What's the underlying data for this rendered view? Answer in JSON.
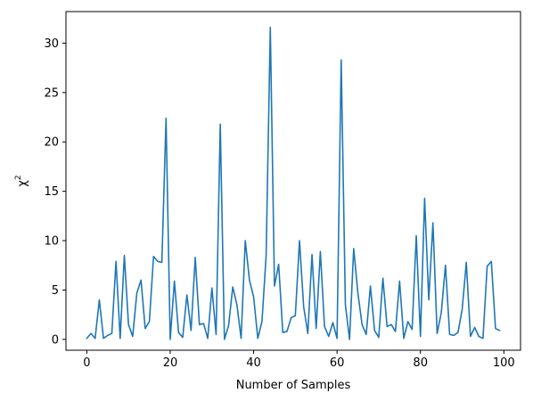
{
  "chart_data": {
    "type": "line",
    "title": "",
    "xlabel": "Number of Samples",
    "ylabel_base": "χ",
    "ylabel_sup": "2",
    "xlim": [
      -5,
      104
    ],
    "ylim": [
      -1.1,
      33.2
    ],
    "grid": false,
    "x_ticks": [
      0,
      20,
      40,
      60,
      80,
      100
    ],
    "y_ticks": [
      0,
      5,
      10,
      15,
      20,
      25,
      30
    ],
    "series": [
      {
        "color": "#1f77b4",
        "x": [
          0,
          1,
          2,
          3,
          4,
          5,
          6,
          7,
          8,
          9,
          10,
          11,
          12,
          13,
          14,
          15,
          16,
          17,
          18,
          19,
          20,
          21,
          22,
          23,
          24,
          25,
          26,
          27,
          28,
          29,
          30,
          31,
          32,
          33,
          34,
          35,
          36,
          37,
          38,
          39,
          40,
          41,
          42,
          43,
          44,
          45,
          46,
          47,
          48,
          49,
          50,
          51,
          52,
          53,
          54,
          55,
          56,
          57,
          58,
          59,
          60,
          61,
          62,
          63,
          64,
          65,
          66,
          67,
          68,
          69,
          70,
          71,
          72,
          73,
          74,
          75,
          76,
          77,
          78,
          79,
          80,
          81,
          82,
          83,
          84,
          85,
          86,
          87,
          88,
          89,
          90,
          91,
          92,
          93,
          94,
          95,
          96,
          97,
          98,
          99
        ],
        "values": [
          0.1,
          0.6,
          0.1,
          4.0,
          0.1,
          0.4,
          0.6,
          7.9,
          0.1,
          8.5,
          1.5,
          0.3,
          4.7,
          6.0,
          1.1,
          1.8,
          8.4,
          7.9,
          7.8,
          22.4,
          0.0,
          5.9,
          0.7,
          0.2,
          4.5,
          0.9,
          8.3,
          1.5,
          1.6,
          0.1,
          5.2,
          0.5,
          21.8,
          0.0,
          1.4,
          5.3,
          3.5,
          0.1,
          10.0,
          6.0,
          4.3,
          0.1,
          1.8,
          8.5,
          31.6,
          5.4,
          7.6,
          0.7,
          0.8,
          2.2,
          2.4,
          10.0,
          3.3,
          0.6,
          8.6,
          1.1,
          8.9,
          1.3,
          0.3,
          1.7,
          0.1,
          28.3,
          3.5,
          0.0,
          9.2,
          4.7,
          1.5,
          0.5,
          5.4,
          0.9,
          0.2,
          6.2,
          1.3,
          1.5,
          0.8,
          5.9,
          0.1,
          1.8,
          1.0,
          10.5,
          0.3,
          14.3,
          4.0,
          11.8,
          0.6,
          2.7,
          7.5,
          0.5,
          0.4,
          0.7,
          3.0,
          7.8,
          0.3,
          1.2,
          0.3,
          0.1,
          7.4,
          7.9,
          1.1,
          0.9
        ]
      }
    ]
  }
}
